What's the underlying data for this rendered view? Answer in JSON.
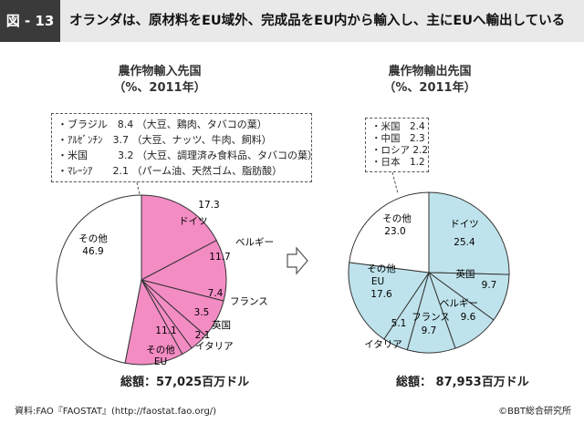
{
  "header": {
    "figure_label": "図 - 13",
    "title": "オランダは、原材料をEU域外、完成品をEU内から輸入し、主にEUへ輸出している"
  },
  "colors": {
    "import_fill": "#f48cc4",
    "export_fill": "#bfe3ec",
    "other_fill": "#ffffff",
    "line": "#333333",
    "header_bg": "#e9e9e9",
    "label_bg": "#3a3a3a"
  },
  "chart_data": [
    {
      "type": "pie",
      "title": "農作物輸入先国",
      "subtitle": "（%、2011年）",
      "slices": [
        {
          "name": "ドイツ",
          "value": 17.3,
          "group": "EU"
        },
        {
          "name": "ベルギー",
          "value": 11.7,
          "group": "EU"
        },
        {
          "name": "フランス",
          "value": 7.4,
          "group": "EU"
        },
        {
          "name": "英国",
          "value": 3.5,
          "group": "EU"
        },
        {
          "name": "イタリア",
          "value": 2.1,
          "group": "EU"
        },
        {
          "name": "その他EU",
          "value": 11.1,
          "group": "EU"
        },
        {
          "name": "その他",
          "value": 46.9,
          "group": "other"
        }
      ],
      "labels": {
        "ドイツ_name": "ドイツ",
        "ドイツ_value": "17.3",
        "ベルギー_name": "ベルギー",
        "ベルギー_value": "11.7",
        "フランス_name": "フランス",
        "フランス_value": "7.4",
        "英国_name": "英国",
        "英国_value": "3.5",
        "イタリア_name": "イタリア",
        "イタリア_value": "2.1",
        "その他EU_name_1": "その他",
        "その他EU_name_2": "EU",
        "その他EU_value": "11.1",
        "その他_name": "その他",
        "その他_value": "46.9"
      },
      "breakdown": [
        "・ブラジル　8.4 （大豆、鶏肉、タバコの葉）",
        "・ｱﾙｾﾞﾝﾁﾝ　3.7 （大豆、ナッツ、牛肉、飼料）",
        "・米国　　　3.2 （大豆、調理済み食料品、タバコの葉）",
        "・ﾏﾚｰｼｱ　　2.1 （パーム油、天然ゴム、脂肪酸）"
      ],
      "total": "総額：57,025百万ドル"
    },
    {
      "type": "pie",
      "title": "農作物輸出先国",
      "subtitle": "（%、2011年）",
      "slices": [
        {
          "name": "ドイツ",
          "value": 25.4,
          "group": "EU"
        },
        {
          "name": "英国",
          "value": 9.7,
          "group": "EU"
        },
        {
          "name": "ベルギー",
          "value": 9.6,
          "group": "EU"
        },
        {
          "name": "フランス",
          "value": 9.7,
          "group": "EU"
        },
        {
          "name": "イタリア",
          "value": 5.1,
          "group": "EU"
        },
        {
          "name": "その他EU",
          "value": 17.6,
          "group": "EU"
        },
        {
          "name": "その他",
          "value": 23.0,
          "group": "other"
        }
      ],
      "labels": {
        "ドイツ_name": "ドイツ",
        "ドイツ_value": "25.4",
        "英国_name": "英国",
        "英国_value": "9.7",
        "ベルギー_name": "ベルギー",
        "ベルギー_value": "9.6",
        "フランス_name": "フランス",
        "フランス_value": "9.7",
        "イタリア_name": "イタリア",
        "イタリア_value": "5.1",
        "その他EU_name_1": "その他",
        "その他EU_name_2": "EU",
        "その他EU_value": "17.6",
        "その他_name": "その他",
        "その他_value": "23.0"
      },
      "breakdown": [
        "・米国　2.4",
        "・中国　2.3",
        "・ロシア 2.2",
        "・日本　1.2"
      ],
      "total": "総額： 87,953百万ドル"
    }
  ],
  "footer": {
    "source": "資料:FAO『FAOSTAT』(http://faostat.fao.org/)",
    "copyright": "©BBT総合研究所"
  }
}
